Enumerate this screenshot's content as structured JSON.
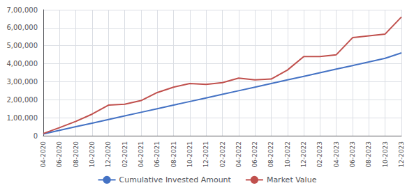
{
  "chart_data": {
    "type": "line",
    "categories": [
      "04-2020",
      "06-2020",
      "08-2020",
      "10-2020",
      "12-2020",
      "02-2021",
      "04-2021",
      "06-2021",
      "08-2021",
      "10-2021",
      "12-2021",
      "02-2022",
      "04-2022",
      "06-2022",
      "08-2022",
      "10-2022",
      "12-2022",
      "02-2023",
      "04-2023",
      "06-2023",
      "08-2023",
      "10-2023",
      "12-2023"
    ],
    "series": [
      {
        "name": "Cumulative Invested Amount",
        "color": "#4472c4",
        "values": [
          10000,
          30000,
          50000,
          70000,
          90000,
          110000,
          130000,
          150000,
          170000,
          190000,
          210000,
          230000,
          250000,
          270000,
          290000,
          310000,
          330000,
          350000,
          370000,
          390000,
          410000,
          430000,
          460000
        ]
      },
      {
        "name": "Market Value",
        "color": "#c0504d",
        "values": [
          12000,
          45000,
          80000,
          120000,
          170000,
          175000,
          195000,
          240000,
          270000,
          290000,
          285000,
          295000,
          320000,
          310000,
          315000,
          365000,
          440000,
          440000,
          450000,
          545000,
          555000,
          565000,
          660000
        ]
      }
    ],
    "ylim": [
      0,
      700000
    ],
    "yticks": [
      0,
      {
        "value": 100000,
        "label": "1,00,000"
      },
      {
        "value": 200000,
        "label": "2,00,000"
      },
      {
        "value": 300000,
        "label": "3,00,000"
      },
      {
        "value": 400000,
        "label": "4,00,000"
      },
      {
        "value": 500000,
        "label": "5,00,000"
      },
      {
        "value": 600000,
        "label": "6,00,000"
      },
      {
        "value": 700000,
        "label": "7,00,000"
      }
    ],
    "grid": true,
    "legend": "bottom"
  }
}
